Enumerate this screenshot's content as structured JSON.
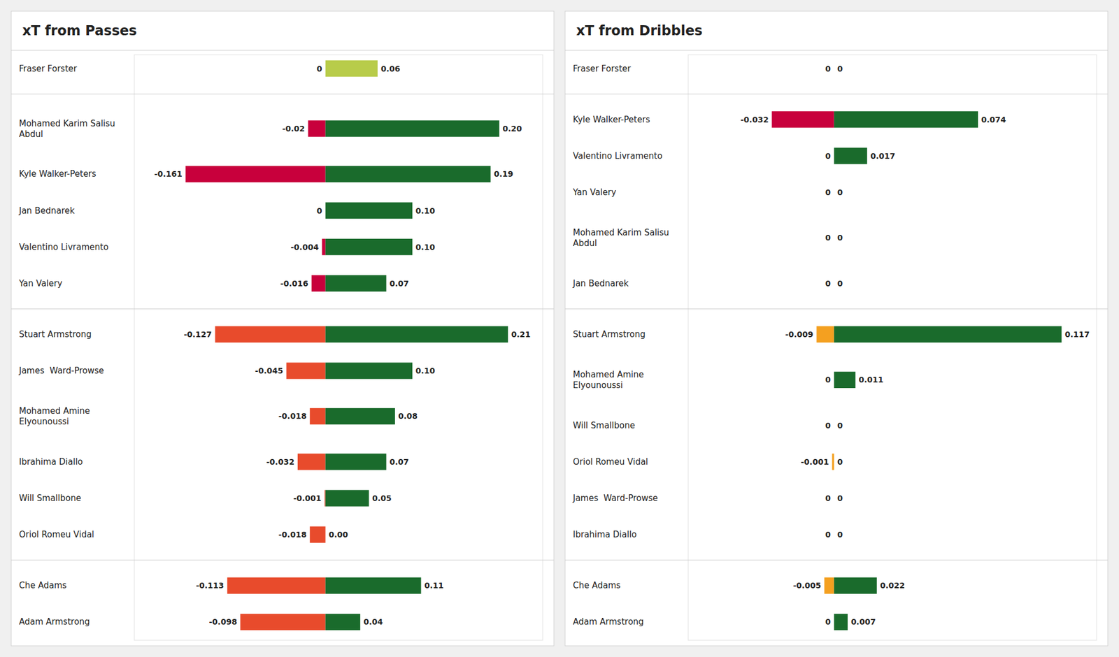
{
  "chart_data": [
    {
      "type": "bar",
      "orientation": "horizontal",
      "title": "xT from Passes",
      "categories": [
        "Fraser Forster",
        null,
        "Mohamed Karim Salisu\nAbdul",
        "Kyle Walker-Peters",
        "Jan Bednarek",
        "Valentino Livramento",
        "Yan Valery",
        null,
        "Stuart Armstrong",
        "James  Ward-Prowse",
        "Mohamed Amine\nElyounoussi",
        "Ibrahima Diallo",
        "Will Smallbone",
        "Oriol Romeu Vidal",
        null,
        "Che Adams",
        "Adam Armstrong"
      ],
      "series": [
        {
          "values": [
            0.0,
            null,
            -0.02,
            -0.161,
            0.0,
            -0.004,
            -0.016,
            null,
            -0.127,
            -0.045,
            -0.018,
            -0.032,
            -0.001,
            -0.018,
            null,
            -0.113,
            -0.098
          ],
          "value_labels": [
            "0",
            null,
            "-0.02",
            "-0.161",
            "0",
            "-0.004",
            "-0.016",
            null,
            "-0.127",
            "-0.045",
            "-0.018",
            "-0.032",
            "-0.001",
            "-0.018",
            null,
            "-0.113",
            "-0.098"
          ],
          "colors": [
            "#b8cc4a",
            null,
            "#c8003c",
            "#c8003c",
            "#c8003c",
            "#c8003c",
            "#c8003c",
            null,
            "#e84b2c",
            "#e84b2c",
            "#e84b2c",
            "#e84b2c",
            "#e84b2c",
            "#e84b2c",
            null,
            "#e84b2c",
            "#e84b2c"
          ]
        },
        {
          "values": [
            0.06,
            null,
            0.2,
            0.19,
            0.1,
            0.1,
            0.07,
            null,
            0.21,
            0.1,
            0.08,
            0.07,
            0.05,
            0.0,
            null,
            0.11,
            0.04
          ],
          "value_labels": [
            "0.06",
            null,
            "0.20",
            "0.19",
            "0.10",
            "0.10",
            "0.07",
            null,
            "0.21",
            "0.10",
            "0.08",
            "0.07",
            "0.05",
            "0.00",
            null,
            "0.11",
            "0.04"
          ],
          "colors": [
            "#b8cc4a",
            null,
            "#1a6b2c",
            "#1a6b2c",
            "#1a6b2c",
            "#1a6b2c",
            "#1a6b2c",
            null,
            "#1a6b2c",
            "#1a6b2c",
            "#1a6b2c",
            "#1a6b2c",
            "#1a6b2c",
            "#1a6b2c",
            null,
            "#1a6b2c",
            "#1a6b2c"
          ]
        }
      ],
      "xlim": [
        -0.22,
        0.25
      ],
      "data_labels": true,
      "tick_labels": false,
      "grid": false
    },
    {
      "type": "bar",
      "orientation": "horizontal",
      "title": "xT from Dribbles",
      "categories": [
        "Fraser Forster",
        null,
        "Kyle Walker-Peters",
        "Valentino Livramento",
        "Yan Valery",
        "Mohamed Karim Salisu\nAbdul",
        "Jan Bednarek",
        null,
        "Stuart Armstrong",
        "Mohamed Amine\nElyounoussi",
        "Will Smallbone",
        "Oriol Romeu Vidal",
        "James  Ward-Prowse",
        "Ibrahima Diallo",
        null,
        "Che Adams",
        "Adam Armstrong"
      ],
      "series": [
        {
          "values": [
            0.0,
            null,
            -0.032,
            0.0,
            0.0,
            0.0,
            0.0,
            null,
            -0.009,
            0.0,
            0.0,
            -0.001,
            0.0,
            0.0,
            null,
            -0.005,
            0.0
          ],
          "value_labels": [
            "0",
            null,
            "-0.032",
            "0",
            "0",
            "0",
            "0",
            null,
            "-0.009",
            "0",
            "0",
            "-0.001",
            "0",
            "0",
            null,
            "-0.005",
            "0"
          ],
          "colors": [
            "#b8cc4a",
            null,
            "#c8003c",
            "#c8003c",
            "#c8003c",
            "#c8003c",
            "#c8003c",
            null,
            "#f4a020",
            "#f4a020",
            "#f4a020",
            "#f4a020",
            "#f4a020",
            "#f4a020",
            null,
            "#f4a020",
            "#f4a020"
          ]
        },
        {
          "values": [
            0.0,
            null,
            0.074,
            0.017,
            0.0,
            0.0,
            0.0,
            null,
            0.117,
            0.011,
            0.0,
            0.0,
            0.0,
            0.0,
            null,
            0.022,
            0.007
          ],
          "value_labels": [
            "0",
            null,
            "0.074",
            "0.017",
            "0",
            "0",
            "0",
            null,
            "0.117",
            "0.011",
            "0",
            "0",
            "0",
            "0",
            null,
            "0.022",
            "0.007"
          ],
          "colors": [
            "#b8cc4a",
            null,
            "#1a6b2c",
            "#1a6b2c",
            "#1a6b2c",
            "#1a6b2c",
            "#1a6b2c",
            null,
            "#1a6b2c",
            "#1a6b2c",
            "#1a6b2c",
            "#1a6b2c",
            "#1a6b2c",
            "#1a6b2c",
            null,
            "#1a6b2c",
            "#1a6b2c"
          ]
        }
      ],
      "xlim": [
        -0.075,
        0.135
      ],
      "data_labels": true,
      "tick_labels": false,
      "grid": false
    }
  ]
}
